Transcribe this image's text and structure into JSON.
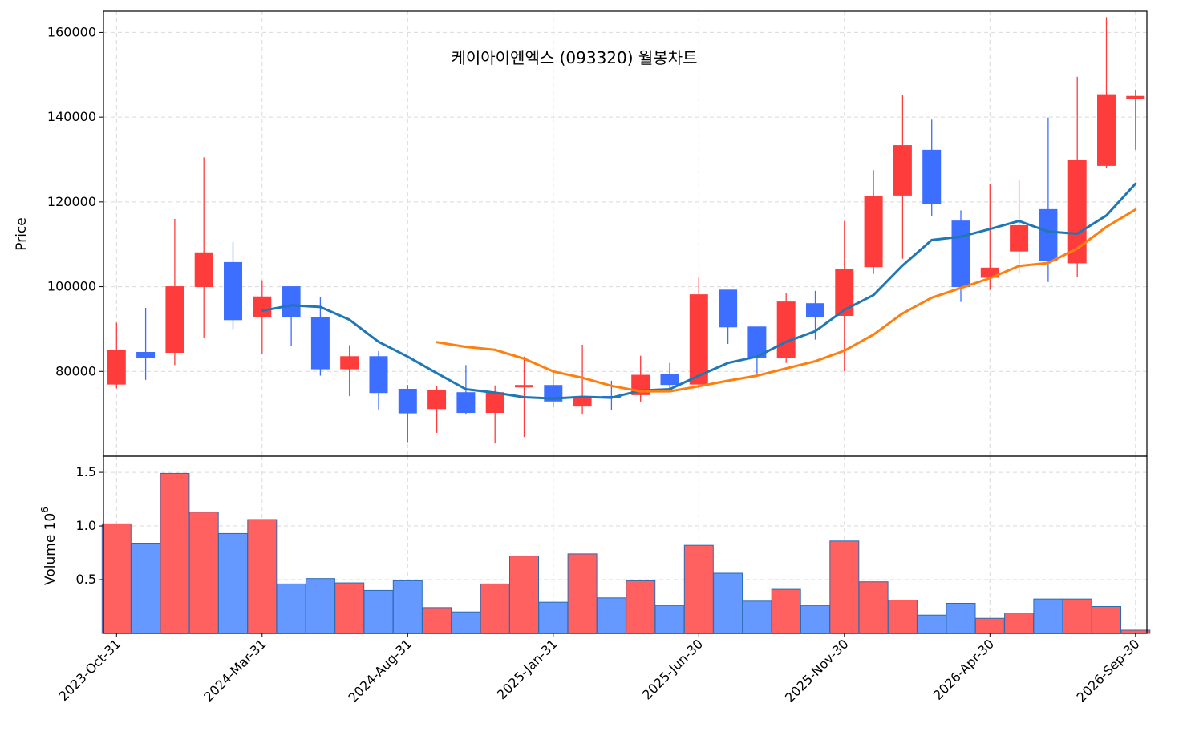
{
  "chart_data": {
    "type": "candlestick",
    "title": "케이아이엔엑스 (093320) 월봉차트",
    "price_panel": {
      "ylabel": "Price",
      "ylim": [
        60000,
        165000
      ],
      "yticks": [
        80000,
        100000,
        120000,
        140000,
        160000
      ]
    },
    "volume_panel": {
      "ylabel": "Volume",
      "scale_exponent": "6",
      "ylim": [
        0,
        1.65
      ],
      "yticks": [
        "0.5",
        "1.0",
        "1.5"
      ]
    },
    "x_tick_labels": [
      "2023-Oct-31",
      "2024-Mar-31",
      "2024-Aug-31",
      "2025-Jan-31",
      "2025-Jun-30",
      "2025-Nov-30",
      "2026-Apr-30",
      "2026-Sep-30"
    ],
    "x_tick_index": [
      0,
      5,
      10,
      15,
      20,
      25,
      30,
      35
    ],
    "candles": [
      {
        "o": 77000,
        "h": 91500,
        "l": 76000,
        "c": 85000,
        "v": 1.02
      },
      {
        "o": 84500,
        "h": 95000,
        "l": 78000,
        "c": 83200,
        "v": 0.84
      },
      {
        "o": 84500,
        "h": 116000,
        "l": 81500,
        "c": 100000,
        "v": 1.49
      },
      {
        "o": 100000,
        "h": 130500,
        "l": 88000,
        "c": 108000,
        "v": 1.13
      },
      {
        "o": 105700,
        "h": 110500,
        "l": 90000,
        "c": 92200,
        "v": 0.93
      },
      {
        "o": 93000,
        "h": 101500,
        "l": 84000,
        "c": 97600,
        "v": 1.06
      },
      {
        "o": 100000,
        "h": 100000,
        "l": 86000,
        "c": 93000,
        "v": 0.46
      },
      {
        "o": 92800,
        "h": 97600,
        "l": 79000,
        "c": 80600,
        "v": 0.51
      },
      {
        "o": 80600,
        "h": 86200,
        "l": 74200,
        "c": 83500,
        "v": 0.47
      },
      {
        "o": 83500,
        "h": 84800,
        "l": 71000,
        "c": 75000,
        "v": 0.4
      },
      {
        "o": 75800,
        "h": 76800,
        "l": 63300,
        "c": 70200,
        "v": 0.49
      },
      {
        "o": 71200,
        "h": 76500,
        "l": 65500,
        "c": 75500,
        "v": 0.24
      },
      {
        "o": 75000,
        "h": 81500,
        "l": 69800,
        "c": 70300,
        "v": 0.2
      },
      {
        "o": 70300,
        "h": 76700,
        "l": 63000,
        "c": 75000,
        "v": 0.46
      },
      {
        "o": 76700,
        "h": 83500,
        "l": 64500,
        "c": 76700,
        "v": 0.72
      },
      {
        "o": 76700,
        "h": 80000,
        "l": 71500,
        "c": 73000,
        "v": 0.29
      },
      {
        "o": 71800,
        "h": 86300,
        "l": 69800,
        "c": 74000,
        "v": 0.74
      },
      {
        "o": 74100,
        "h": 77800,
        "l": 70800,
        "c": 73800,
        "v": 0.33
      },
      {
        "o": 74500,
        "h": 83700,
        "l": 72700,
        "c": 79100,
        "v": 0.49
      },
      {
        "o": 79300,
        "h": 82000,
        "l": 75700,
        "c": 76900,
        "v": 0.26
      },
      {
        "o": 77000,
        "h": 102200,
        "l": 76000,
        "c": 98100,
        "v": 0.82
      },
      {
        "o": 99200,
        "h": 99200,
        "l": 86500,
        "c": 90500,
        "v": 0.56
      },
      {
        "o": 90500,
        "h": 90500,
        "l": 79500,
        "c": 83200,
        "v": 0.3
      },
      {
        "o": 83200,
        "h": 98500,
        "l": 82000,
        "c": 96400,
        "v": 0.41
      },
      {
        "o": 96000,
        "h": 99000,
        "l": 87500,
        "c": 93000,
        "v": 0.26
      },
      {
        "o": 93200,
        "h": 115500,
        "l": 80000,
        "c": 104100,
        "v": 0.86
      },
      {
        "o": 104700,
        "h": 127500,
        "l": 103000,
        "c": 121300,
        "v": 0.48
      },
      {
        "o": 121600,
        "h": 145200,
        "l": 106600,
        "c": 133300,
        "v": 0.31
      },
      {
        "o": 132200,
        "h": 139400,
        "l": 116600,
        "c": 119500,
        "v": 0.17
      },
      {
        "o": 115500,
        "h": 118000,
        "l": 96400,
        "c": 100000,
        "v": 0.28
      },
      {
        "o": 102200,
        "h": 124300,
        "l": 99200,
        "c": 104400,
        "v": 0.14
      },
      {
        "o": 108400,
        "h": 125200,
        "l": 103100,
        "c": 114400,
        "v": 0.19
      },
      {
        "o": 118200,
        "h": 139900,
        "l": 101100,
        "c": 106200,
        "v": 0.32
      },
      {
        "o": 105600,
        "h": 149500,
        "l": 102300,
        "c": 129900,
        "v": 0.32
      },
      {
        "o": 128600,
        "h": 163600,
        "l": 128000,
        "c": 145300,
        "v": 0.25
      },
      {
        "o": 144300,
        "h": 146500,
        "l": 132300,
        "c": 144900,
        "v": 0.03
      }
    ],
    "ma_short": {
      "color": "#1f77b4",
      "start_index": 5,
      "values": [
        94300,
        95600,
        95200,
        92200,
        87000,
        83500,
        79600,
        75800,
        75000,
        73900,
        73600,
        74000,
        73800,
        75500,
        75800,
        79000,
        82000,
        83500,
        87000,
        89500,
        94500,
        98000,
        105000,
        111000,
        111800,
        113600,
        115500,
        113000,
        112500,
        116800,
        124300
      ]
    },
    "ma_long": {
      "color": "#ff7f0e",
      "start_index": 11,
      "values": [
        86900,
        85800,
        85100,
        83000,
        80000,
        78500,
        76600,
        75300,
        75300,
        76500,
        77800,
        79000,
        80700,
        82400,
        84900,
        88700,
        93700,
        97400,
        99700,
        102000,
        104900,
        105600,
        109000,
        114100,
        118200
      ]
    },
    "up_color": "#ff3c3c",
    "down_color": "#3c6eff",
    "up_vol_color": "#ff6060",
    "down_vol_color": "#6699ff",
    "grid": true
  }
}
